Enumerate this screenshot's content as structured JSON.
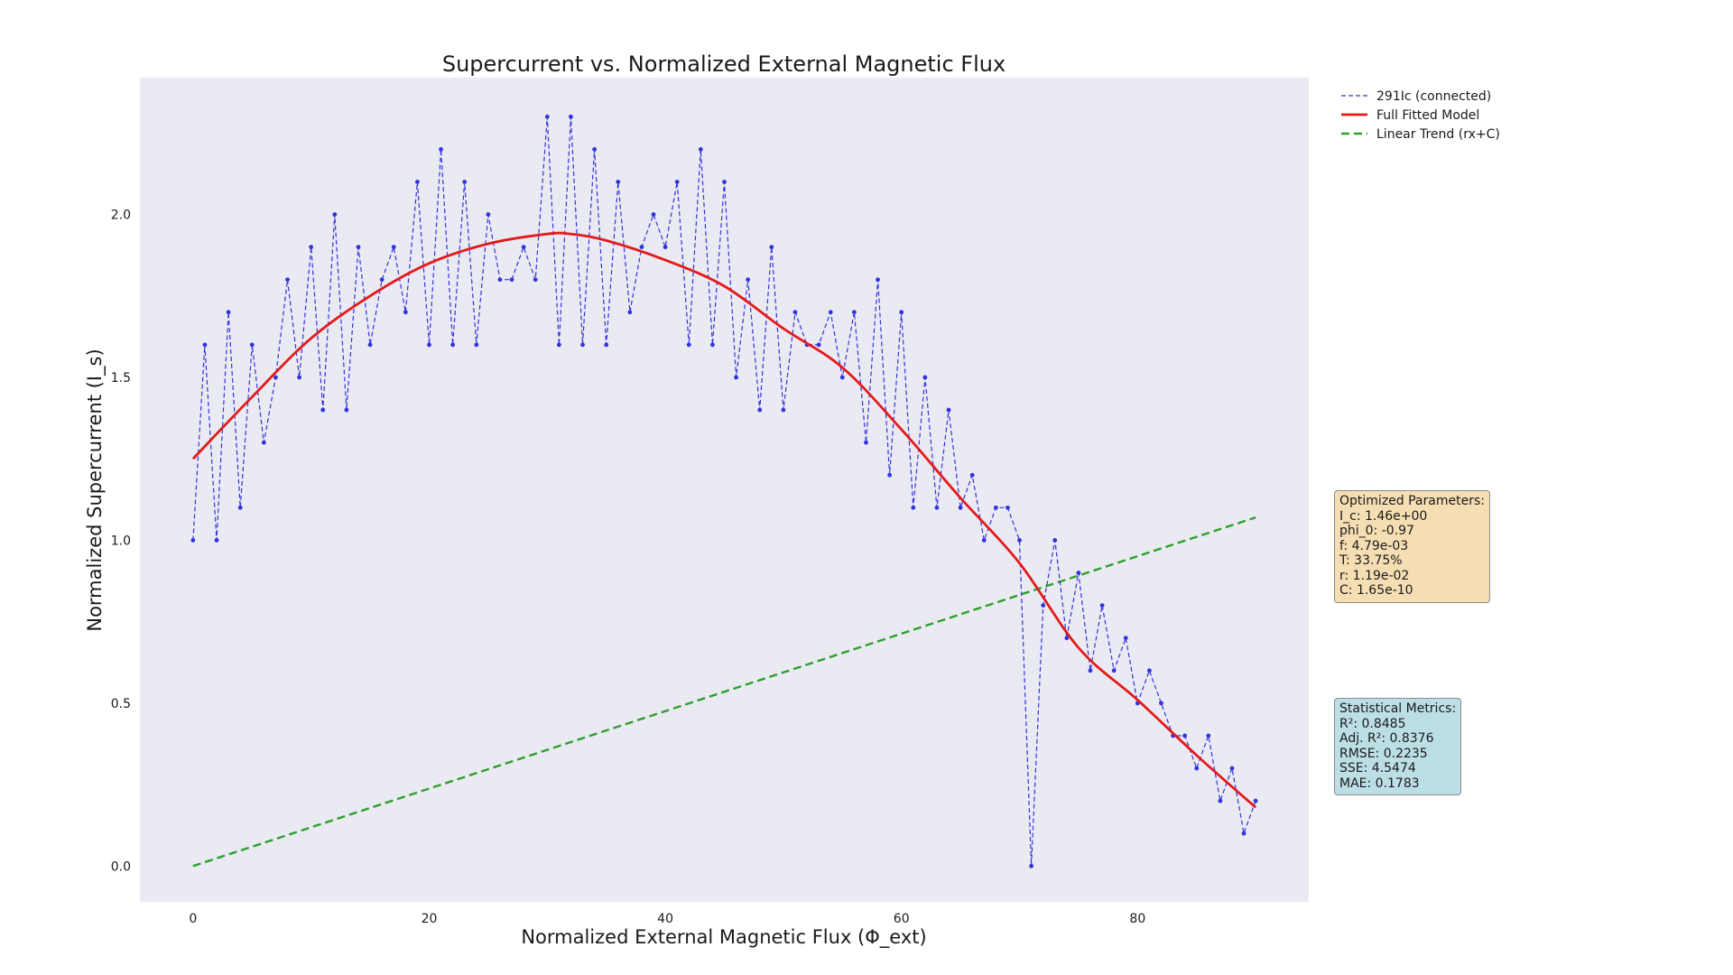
{
  "colors": {
    "plot_bg": "#eaeaf2",
    "data": "#3333dd",
    "model": "#e31a1c",
    "trend": "#2ca02c",
    "params_box": "#f5deb3",
    "metrics_box": "#bcdfe6"
  },
  "chart_data": {
    "type": "line",
    "title": "Supercurrent vs. Normalized External Magnetic Flux",
    "xlabel": "Normalized External Magnetic Flux (Φ_ext)",
    "ylabel": "Normalized Supercurrent (I_s)",
    "xlim": [
      -4.5,
      94.5
    ],
    "ylim": [
      -0.11,
      2.42
    ],
    "xticks": [
      0,
      20,
      40,
      60,
      80
    ],
    "yticks": [
      0.0,
      0.5,
      1.0,
      1.5,
      2.0
    ],
    "xtick_labels": [
      "0",
      "20",
      "40",
      "60",
      "80"
    ],
    "ytick_labels": [
      "0.0",
      "0.5",
      "1.0",
      "1.5",
      "2.0"
    ],
    "grid": false,
    "legend_position": "outside top-right",
    "series": [
      {
        "name": "291Ic (connected)",
        "style": "dashed line with dot markers",
        "x": [
          0,
          1,
          2,
          3,
          4,
          5,
          6,
          7,
          8,
          9,
          10,
          11,
          12,
          13,
          14,
          15,
          16,
          17,
          18,
          19,
          20,
          21,
          22,
          23,
          24,
          25,
          26,
          27,
          28,
          29,
          30,
          31,
          32,
          33,
          34,
          35,
          36,
          37,
          38,
          39,
          40,
          41,
          42,
          43,
          44,
          45,
          46,
          47,
          48,
          49,
          50,
          51,
          52,
          53,
          54,
          55,
          56,
          57,
          58,
          59,
          60,
          61,
          62,
          63,
          64,
          65,
          66,
          67,
          68,
          69,
          70,
          71,
          72,
          73,
          74,
          75,
          76,
          77,
          78,
          79,
          80,
          81,
          82,
          83,
          84,
          85,
          86,
          87,
          88,
          89,
          90
        ],
        "y": [
          1.0,
          1.6,
          1.0,
          1.7,
          1.1,
          1.6,
          1.3,
          1.5,
          1.8,
          1.5,
          1.9,
          1.4,
          2.0,
          1.4,
          1.9,
          1.6,
          1.8,
          1.9,
          1.7,
          2.1,
          1.6,
          2.2,
          1.6,
          2.1,
          1.6,
          2.0,
          1.8,
          1.8,
          1.9,
          1.8,
          2.3,
          1.6,
          2.3,
          1.6,
          2.2,
          1.6,
          2.1,
          1.7,
          1.9,
          2.0,
          1.9,
          2.1,
          1.6,
          2.2,
          1.6,
          2.1,
          1.5,
          1.8,
          1.4,
          1.9,
          1.4,
          1.7,
          1.6,
          1.6,
          1.7,
          1.5,
          1.7,
          1.3,
          1.8,
          1.2,
          1.7,
          1.1,
          1.5,
          1.1,
          1.4,
          1.1,
          1.2,
          1.0,
          1.1,
          1.1,
          1.0,
          0.0,
          0.8,
          1.0,
          0.7,
          0.9,
          0.6,
          0.8,
          0.6,
          0.7,
          0.5,
          0.6,
          0.5,
          0.4,
          0.4,
          0.3,
          0.4,
          0.2,
          0.3,
          0.1,
          0.2
        ]
      },
      {
        "name": "Full Fitted Model",
        "style": "solid",
        "x": [
          0,
          5,
          10,
          15,
          20,
          25,
          30,
          32,
          35,
          40,
          45,
          50,
          55,
          60,
          65,
          70,
          75,
          80,
          85,
          90
        ],
        "y": [
          1.25,
          1.44,
          1.62,
          1.75,
          1.85,
          1.91,
          1.94,
          1.94,
          1.92,
          1.86,
          1.78,
          1.65,
          1.53,
          1.34,
          1.13,
          0.93,
          0.67,
          0.51,
          0.34,
          0.18
        ]
      },
      {
        "name": "Linear Trend (rx+C)",
        "style": "dashed",
        "x": [
          0,
          90
        ],
        "y": [
          0.0,
          1.07
        ]
      }
    ]
  },
  "annotations": {
    "params": {
      "title": "Optimized Parameters:",
      "lines": [
        "I_c: 1.46e+00",
        "phi_0: -0.97",
        "f: 4.79e-03",
        "T: 33.75%",
        "r: 1.19e-02",
        "C: 1.65e-10"
      ]
    },
    "metrics": {
      "title": "Statistical Metrics:",
      "lines": [
        "R²: 0.8485",
        "Adj. R²: 0.8376",
        "RMSE: 0.2235",
        "SSE: 4.5474",
        "MAE: 0.1783"
      ]
    }
  }
}
